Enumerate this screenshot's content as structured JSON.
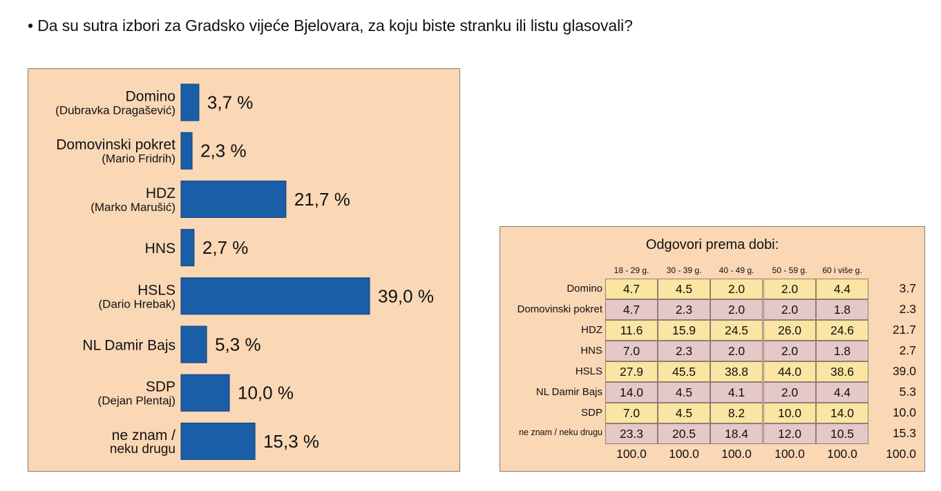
{
  "question": "• Da su sutra izbori za Gradsko vijeće Bjelovara, za koju biste stranku ili listu glasovali?",
  "colors": {
    "bar": "#1a5ea8",
    "panel": "#fad7b5",
    "cell_yellow": "#fae5a2",
    "cell_pink": "#e5c8c8"
  },
  "chart_data": [
    {
      "type": "bar",
      "orientation": "horizontal",
      "categories": [
        {
          "line1": "Domino",
          "line2": "(Dubravka Dragašević)"
        },
        {
          "line1": "Domovinski pokret",
          "line2": "(Mario Fridrih)"
        },
        {
          "line1": "HDZ",
          "line2": "(Marko Marušić)"
        },
        {
          "line1": "HNS",
          "line2": ""
        },
        {
          "line1": "HSLS",
          "line2": "(Dario Hrebak)"
        },
        {
          "line1": "NL Damir Bajs",
          "line2": ""
        },
        {
          "line1": "SDP",
          "line2": "(Dejan Plentaj)"
        },
        {
          "line1": "ne znam /",
          "line2": "neku drugu"
        }
      ],
      "values": [
        3.7,
        2.3,
        21.7,
        2.7,
        39.0,
        5.3,
        10.0,
        15.3
      ],
      "value_labels": [
        "3,7 %",
        "2,3 %",
        "21,7 %",
        "2,7 %",
        "39,0 %",
        "5,3 %",
        "10,0 %",
        "15,3 %"
      ]
    },
    {
      "type": "table",
      "title": "Odgovori prema dobi:",
      "columns": [
        "18 - 29 g.",
        "30 - 39 g.",
        "40 - 49 g.",
        "50 - 59 g.",
        "60 i više g."
      ],
      "rows": [
        {
          "label": "Domino",
          "values": [
            "4.7",
            "4.5",
            "2.0",
            "2.0",
            "4.4"
          ],
          "total": "3.7"
        },
        {
          "label": "Domovinski pokret",
          "values": [
            "4.7",
            "2.3",
            "2.0",
            "2.0",
            "1.8"
          ],
          "total": "2.3"
        },
        {
          "label": "HDZ",
          "values": [
            "11.6",
            "15.9",
            "24.5",
            "26.0",
            "24.6"
          ],
          "total": "21.7"
        },
        {
          "label": "HNS",
          "values": [
            "7.0",
            "2.3",
            "2.0",
            "2.0",
            "1.8"
          ],
          "total": "2.7"
        },
        {
          "label": "HSLS",
          "values": [
            "27.9",
            "45.5",
            "38.8",
            "44.0",
            "38.6"
          ],
          "total": "39.0"
        },
        {
          "label": "NL Damir Bajs",
          "values": [
            "14.0",
            "4.5",
            "4.1",
            "2.0",
            "4.4"
          ],
          "total": "5.3"
        },
        {
          "label": "SDP",
          "values": [
            "7.0",
            "4.5",
            "8.2",
            "10.0",
            "14.0"
          ],
          "total": "10.0"
        },
        {
          "label": "ne znam / neku drugu",
          "values": [
            "23.3",
            "20.5",
            "18.4",
            "12.0",
            "10.5"
          ],
          "total": "15.3"
        }
      ],
      "sums": [
        "100.0",
        "100.0",
        "100.0",
        "100.0",
        "100.0"
      ],
      "sum_total": "100.0"
    }
  ]
}
